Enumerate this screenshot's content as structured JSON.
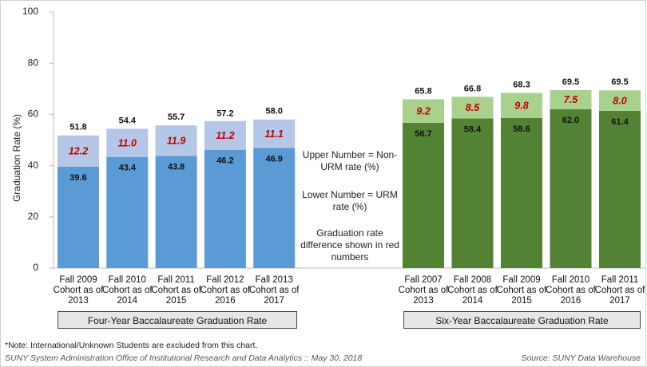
{
  "chart_data": {
    "type": "bar",
    "stacked": true,
    "ylabel": "Graduation Rate (%)",
    "ylim": [
      0,
      100
    ],
    "yticks": [
      0,
      20,
      40,
      60,
      80,
      100
    ],
    "groups": [
      {
        "label": "Four-Year Baccalaureate Graduation Rate",
        "categories": [
          "Fall 2009 Cohort as of 2013",
          "Fall 2010 Cohort as of 2014",
          "Fall 2011 Cohort as of 2015",
          "Fall 2012 Cohort as of 2016",
          "Fall 2013 Cohort as of 2017"
        ],
        "lower": [
          39.6,
          43.4,
          43.8,
          46.2,
          46.9
        ],
        "difference": [
          12.2,
          11.0,
          11.9,
          11.2,
          11.1
        ],
        "difference_labels": [
          "12.2",
          "11.0",
          "11.9",
          "11.2",
          "11.1"
        ],
        "upper": [
          51.8,
          54.4,
          55.7,
          57.2,
          58.0
        ],
        "upper_labels": [
          "51.8",
          "54.4",
          "55.7",
          "57.2",
          "58.0"
        ],
        "lower_color": "#5b9bd5",
        "difference_color": "#b4c7e7"
      },
      {
        "label": "Six-Year Baccalaureate Graduation Rate",
        "categories": [
          "Fall 2007 Cohort as of 2013",
          "Fall 2008 Cohort as of 2014",
          "Fall 2009 Cohort as of 2015",
          "Fall 2010 Cohort as of 2016",
          "Fall 2011 Cohort as of 2017"
        ],
        "lower": [
          56.7,
          58.4,
          58.6,
          62.0,
          61.4
        ],
        "lower_labels": [
          "56.7",
          "58.4",
          "58.6",
          "62.0",
          "61.4"
        ],
        "difference": [
          9.2,
          8.5,
          9.8,
          7.5,
          8.0
        ],
        "difference_labels": [
          "9.2",
          "8.5",
          "9.8",
          "7.5",
          "8.0"
        ],
        "upper": [
          65.8,
          66.8,
          68.3,
          69.5,
          69.5
        ],
        "upper_labels": [
          "65.8",
          "66.8",
          "68.3",
          "69.5",
          "69.5"
        ],
        "lower_color": "#548235",
        "difference_color": "#a9d18e"
      }
    ],
    "difference_text_color": "#c00000",
    "annotations": [
      "Upper Number = Non-URM rate (%)",
      "Lower Number = URM rate (%)",
      "Graduation rate difference shown in red numbers"
    ],
    "note": "*Note: International/Unknown Students are excluded from this chart.",
    "footer": "SUNY System Administration Office of Institutional Research  and Data Analytics  ::  May 30, 2018",
    "source": "Source:  SUNY Data Warehouse"
  }
}
